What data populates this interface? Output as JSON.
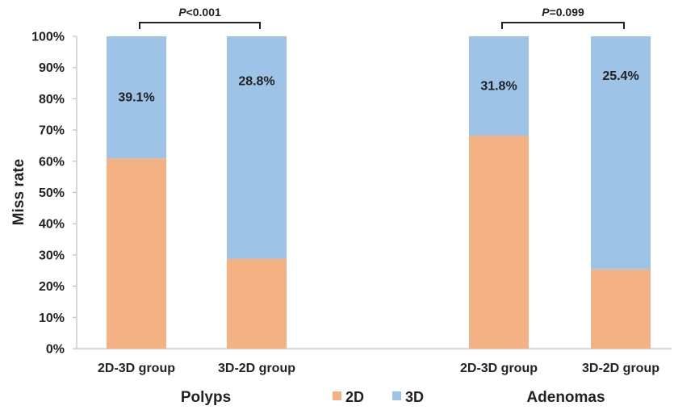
{
  "chart_data": {
    "type": "bar",
    "stacked": true,
    "ylabel": "Miss rate",
    "ylim": [
      0,
      100
    ],
    "yticks": [
      "0%",
      "10%",
      "20%",
      "30%",
      "40%",
      "50%",
      "60%",
      "70%",
      "80%",
      "90%",
      "100%"
    ],
    "categories": [
      "2D-3D group",
      "3D-2D group",
      "2D-3D group",
      "3D-2D group"
    ],
    "groups": [
      {
        "label": "Polyps",
        "p_prefix": "P",
        "p_rest": "<0.001"
      },
      {
        "label": "Adenomas",
        "p_prefix": "P",
        "p_rest": "=0.099"
      }
    ],
    "series": [
      {
        "name": "2D",
        "color": "#f4b183",
        "values": [
          60.9,
          28.8,
          68.2,
          25.4
        ]
      },
      {
        "name": "3D",
        "color": "#9dc3e6",
        "values": [
          39.1,
          71.2,
          31.8,
          74.6
        ]
      }
    ],
    "data_labels": [
      "39.1%",
      "28.8%",
      "31.8%",
      "25.4%"
    ],
    "grid": false,
    "legend_position": "bottom"
  }
}
